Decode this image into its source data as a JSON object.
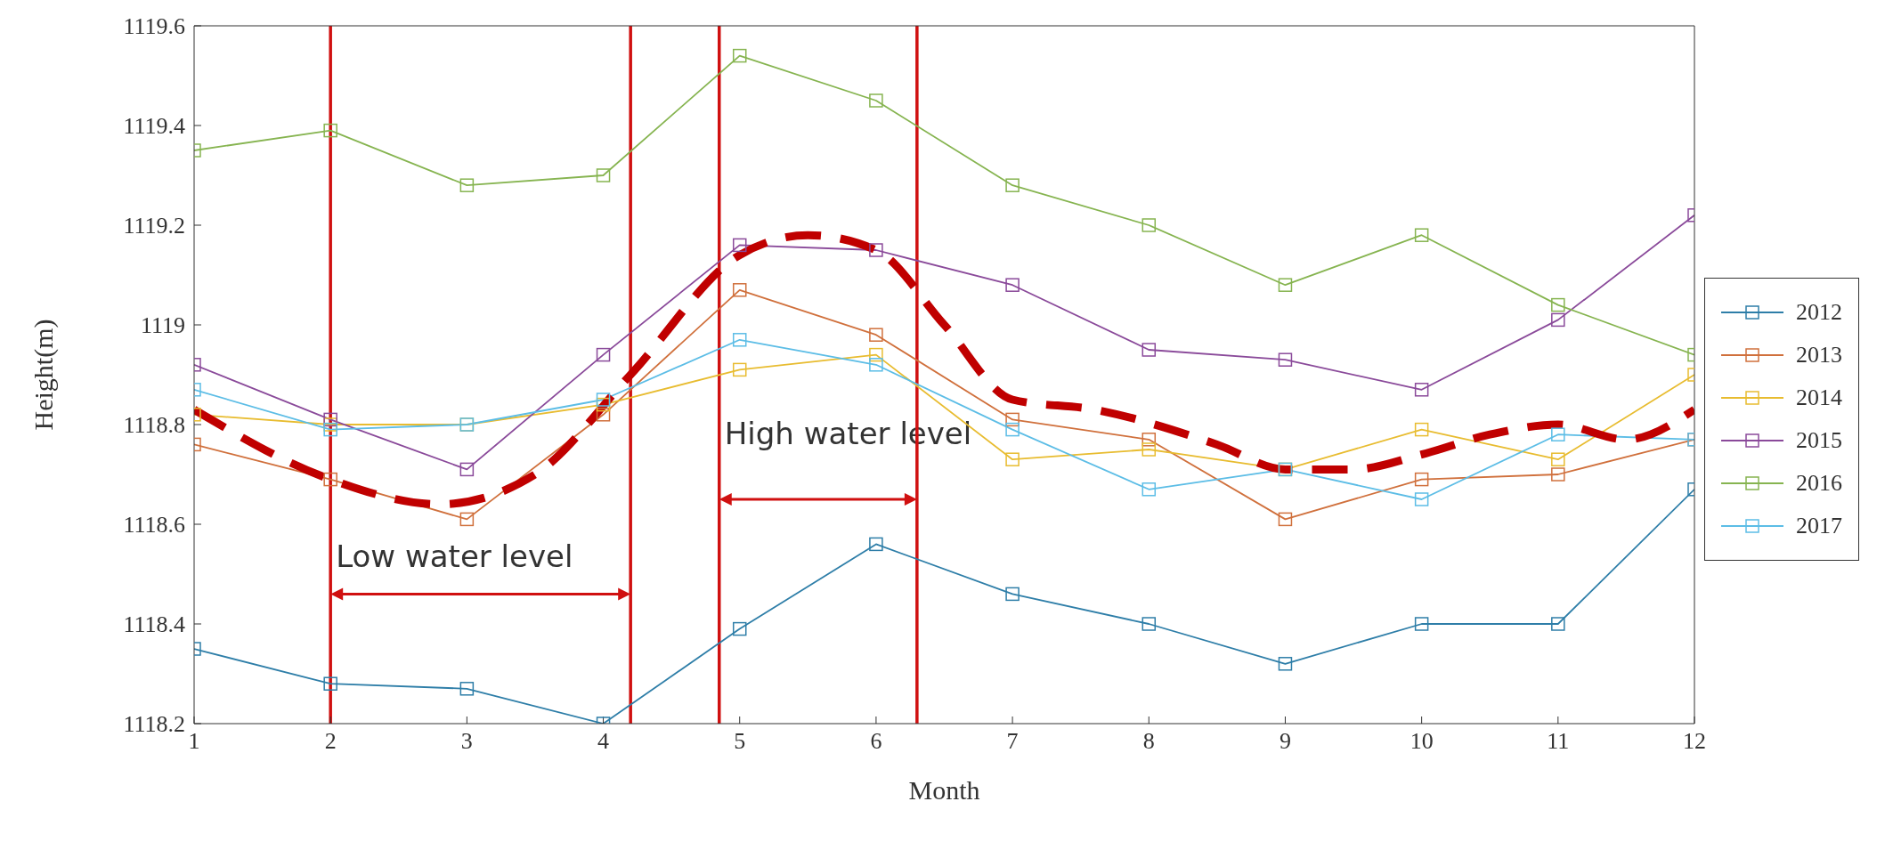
{
  "chart_data": {
    "type": "line",
    "xlabel": "Month",
    "ylabel": "Height(m)",
    "x": [
      1,
      2,
      3,
      4,
      5,
      6,
      7,
      8,
      9,
      10,
      11,
      12
    ],
    "xlim": [
      1,
      12
    ],
    "xticks": [
      1,
      2,
      3,
      4,
      5,
      6,
      7,
      8,
      9,
      10,
      11,
      12
    ],
    "ylim": [
      1118.2,
      1119.6
    ],
    "yticks": [
      1118.2,
      1118.4,
      1118.6,
      1118.8,
      1119,
      1119.2,
      1119.4,
      1119.6
    ],
    "legend": "right",
    "marker": "square",
    "series": [
      {
        "name": "2012",
        "color": "#2e7ea8",
        "values": [
          1118.35,
          1118.28,
          1118.27,
          1118.2,
          1118.39,
          1118.56,
          1118.46,
          1118.4,
          1118.32,
          1118.4,
          1118.4,
          1118.67
        ]
      },
      {
        "name": "2013",
        "color": "#d0703c",
        "values": [
          1118.76,
          1118.69,
          1118.61,
          1118.82,
          1119.07,
          1118.98,
          1118.81,
          1118.77,
          1118.61,
          1118.69,
          1118.7,
          1118.77
        ]
      },
      {
        "name": "2014",
        "color": "#e8bc30",
        "values": [
          1118.82,
          1118.8,
          1118.8,
          1118.84,
          1118.91,
          1118.94,
          1118.73,
          1118.75,
          1118.71,
          1118.79,
          1118.73,
          1118.9
        ]
      },
      {
        "name": "2015",
        "color": "#8a4a9a",
        "values": [
          1118.92,
          1118.81,
          1118.71,
          1118.94,
          1119.16,
          1119.15,
          1119.08,
          1118.95,
          1118.93,
          1118.87,
          1119.01,
          1119.22
        ]
      },
      {
        "name": "2016",
        "color": "#86b450",
        "values": [
          1119.35,
          1119.39,
          1119.28,
          1119.3,
          1119.54,
          1119.45,
          1119.28,
          1119.2,
          1119.08,
          1119.18,
          1119.04,
          1118.94
        ]
      },
      {
        "name": "2017",
        "color": "#5cbde6",
        "values": [
          1118.87,
          1118.79,
          1118.8,
          1118.85,
          1118.97,
          1118.92,
          1118.79,
          1118.67,
          1118.71,
          1118.65,
          1118.78,
          1118.77
        ]
      },
      {
        "type": "line",
        "color": "#c00000",
        "line_style": "dashed",
        "marker": "none",
        "x": [
          1,
          2,
          2.8,
          3.5,
          4.2,
          5,
          5.5,
          6,
          6.5,
          7,
          7.6,
          8.5,
          9,
          9.5,
          10,
          10.5,
          11,
          11.5,
          12
        ],
        "values": [
          1118.83,
          1118.69,
          1118.64,
          1118.7,
          1118.9,
          1119.14,
          1119.18,
          1119.15,
          1119,
          1118.85,
          1118.83,
          1118.76,
          1118.71,
          1118.71,
          1118.74,
          1118.78,
          1118.8,
          1118.77,
          1118.83
        ]
      }
    ],
    "ref_lines": [
      {
        "axis": "x",
        "value": 2,
        "color": "#d01010"
      },
      {
        "axis": "x",
        "value": 4.2,
        "color": "#d01010"
      },
      {
        "axis": "x",
        "value": 4.85,
        "color": "#d01010"
      },
      {
        "axis": "x",
        "value": 6.3,
        "color": "#d01010"
      }
    ],
    "annotations": [
      {
        "text": "Low water level",
        "x": 2,
        "y": 1118.46
      },
      {
        "text": "High water level",
        "x": 4.85,
        "y": 1118.65
      }
    ]
  }
}
